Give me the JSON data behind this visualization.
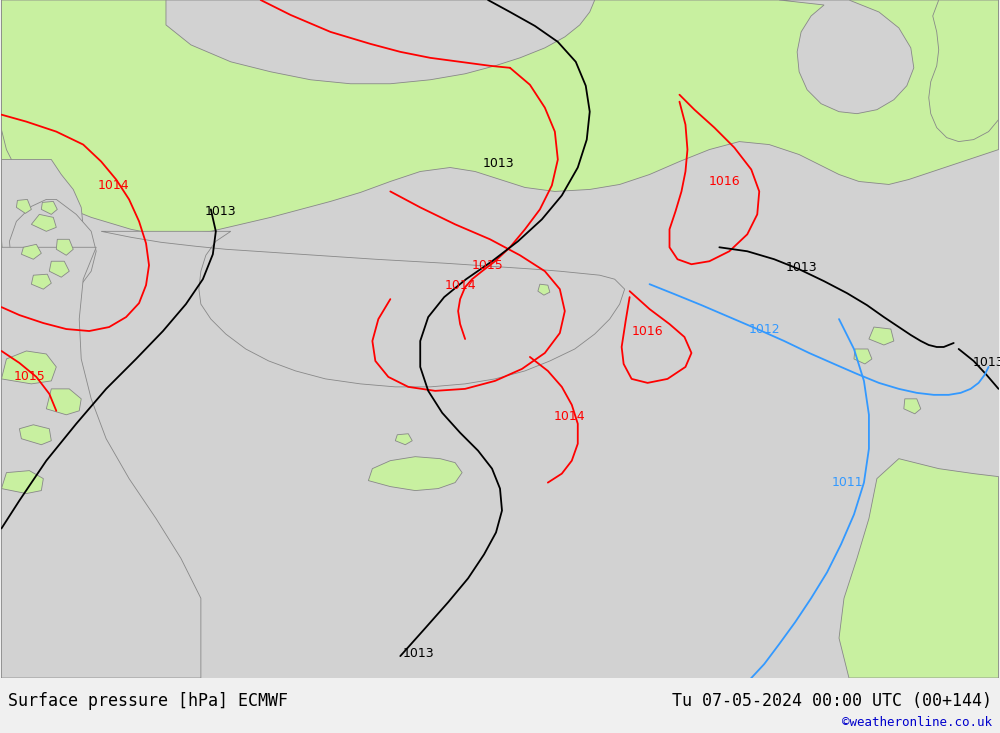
{
  "title_left": "Surface pressure [hPa] ECMWF",
  "title_right": "Tu 07-05-2024 00:00 UTC (00+144)",
  "watermark": "©weatheronline.co.uk",
  "bg_land_green": "#c8f0a0",
  "bg_sea_gray": "#d2d2d2",
  "contour_red": "#ff0000",
  "contour_black": "#000000",
  "contour_blue": "#3399ff",
  "bottom_bg": "#f0f0f0",
  "watermark_color": "#0000cc",
  "coast_color": "#888888",
  "title_fontsize": 12,
  "watermark_fontsize": 9,
  "label_fontsize": 9,
  "isobar_lw": 1.3
}
